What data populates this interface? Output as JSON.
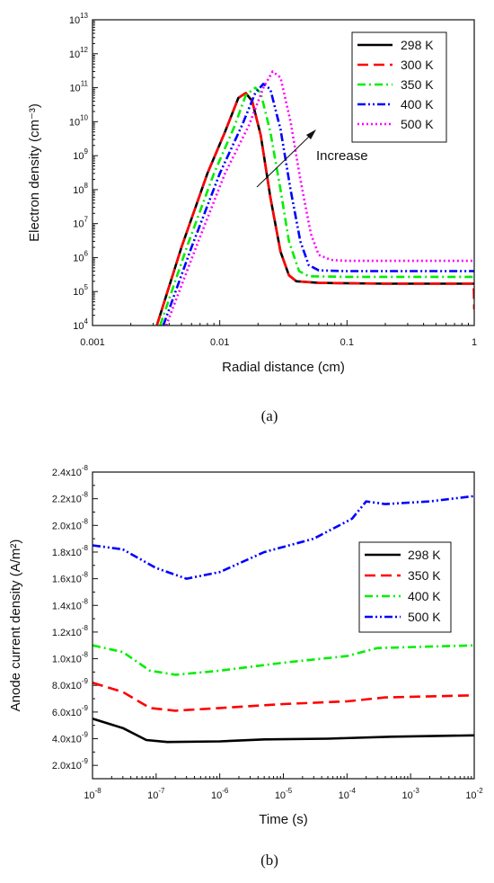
{
  "chart_data": [
    {
      "type": "line",
      "caption": "(a)",
      "xlabel": "Radial distance (cm)",
      "ylabel": "Electron density (cm⁻³)",
      "x_scale": "log",
      "y_scale": "log",
      "xlim": [
        0.001,
        1
      ],
      "ylim": [
        10000,
        10000000000000
      ],
      "x_ticks": [
        0.001,
        0.01,
        0.1,
        1
      ],
      "x_tick_labels": [
        "0.001",
        "0.01",
        "0.1",
        "1"
      ],
      "y_tick_exponents": [
        4,
        5,
        6,
        7,
        8,
        9,
        10,
        11,
        12,
        13
      ],
      "y_tick_base": "10",
      "legend_position": "top-right",
      "annotation": "Increase",
      "series": [
        {
          "name": "298 K",
          "color": "#000000",
          "dash": "solid",
          "points": [
            [
              0.0032,
              10000
            ],
            [
              0.005,
              2000000
            ],
            [
              0.008,
              300000000
            ],
            [
              0.011,
              5000000000
            ],
            [
              0.014,
              50000000000
            ],
            [
              0.016,
              70000000000
            ],
            [
              0.018,
              40000000000
            ],
            [
              0.021,
              4000000000
            ],
            [
              0.025,
              60000000
            ],
            [
              0.03,
              1500000
            ],
            [
              0.035,
              300000
            ],
            [
              0.04,
              200000
            ],
            [
              0.06,
              180000
            ],
            [
              0.2,
              170000
            ],
            [
              1,
              170000
            ]
          ]
        },
        {
          "name": "300 K",
          "color": "#ff0000",
          "dash": "dashed",
          "points": [
            [
              0.0032,
              10000
            ],
            [
              0.005,
              2000000
            ],
            [
              0.008,
              300000000
            ],
            [
              0.011,
              5000000000
            ],
            [
              0.014,
              50000000000
            ],
            [
              0.016,
              70000000000
            ],
            [
              0.018,
              40000000000
            ],
            [
              0.021,
              4000000000
            ],
            [
              0.025,
              60000000
            ],
            [
              0.03,
              1500000
            ],
            [
              0.035,
              300000
            ],
            [
              0.04,
              200000
            ],
            [
              0.06,
              180000
            ],
            [
              0.2,
              170000
            ],
            [
              0.99,
              170000
            ],
            [
              1,
              30000
            ]
          ]
        },
        {
          "name": "350 K",
          "color": "#00ee00",
          "dash": "dashdot",
          "points": [
            [
              0.0034,
              10000
            ],
            [
              0.0055,
              2000000
            ],
            [
              0.009,
              300000000
            ],
            [
              0.013,
              7000000000
            ],
            [
              0.016,
              60000000000
            ],
            [
              0.019,
              100000000000
            ],
            [
              0.021,
              70000000000
            ],
            [
              0.025,
              5000000000
            ],
            [
              0.03,
              100000000
            ],
            [
              0.035,
              3000000
            ],
            [
              0.042,
              400000
            ],
            [
              0.05,
              280000
            ],
            [
              0.1,
              270000
            ],
            [
              1,
              270000
            ]
          ]
        },
        {
          "name": "400 K",
          "color": "#0000ff",
          "dash": "dashdotdot",
          "points": [
            [
              0.0036,
              10000
            ],
            [
              0.006,
              2000000
            ],
            [
              0.01,
              300000000
            ],
            [
              0.015,
              8000000000
            ],
            [
              0.019,
              70000000000
            ],
            [
              0.022,
              130000000000
            ],
            [
              0.025,
              90000000000
            ],
            [
              0.03,
              6000000000
            ],
            [
              0.036,
              100000000
            ],
            [
              0.043,
              3000000
            ],
            [
              0.05,
              600000
            ],
            [
              0.06,
              420000
            ],
            [
              0.1,
              400000
            ],
            [
              1,
              400000
            ]
          ]
        },
        {
          "name": "500 K",
          "color": "#ff00ff",
          "dash": "dotted",
          "points": [
            [
              0.0038,
              10000
            ],
            [
              0.0065,
              2000000
            ],
            [
              0.011,
              300000000
            ],
            [
              0.017,
              8000000000
            ],
            [
              0.022,
              100000000000
            ],
            [
              0.026,
              300000000000
            ],
            [
              0.03,
              200000000000
            ],
            [
              0.036,
              10000000000
            ],
            [
              0.043,
              200000000
            ],
            [
              0.052,
              5000000
            ],
            [
              0.06,
              1200000
            ],
            [
              0.075,
              850000
            ],
            [
              0.1,
              800000
            ],
            [
              1,
              800000
            ]
          ]
        }
      ]
    },
    {
      "type": "line",
      "caption": "(b)",
      "xlabel": "Time (s)",
      "ylabel": "Anode current density (A/m²)",
      "x_scale": "log",
      "y_scale": "linear",
      "xlim": [
        1e-08,
        0.01
      ],
      "ylim": [
        1e-09,
        2.4e-08
      ],
      "x_tick_exponents": [
        -8,
        -7,
        -6,
        -5,
        -4,
        -3,
        -2
      ],
      "x_tick_base": "10",
      "y_ticks": [
        2e-09,
        4e-09,
        6e-09,
        8e-09,
        1e-08,
        1.2e-08,
        1.4e-08,
        1.6e-08,
        1.8e-08,
        2e-08,
        2.2e-08,
        2.4e-08
      ],
      "y_tick_labels": [
        {
          "mant": "2.0x10",
          "exp": "-9"
        },
        {
          "mant": "4.0x10",
          "exp": "-9"
        },
        {
          "mant": "6.0x10",
          "exp": "-9"
        },
        {
          "mant": "8.0x10",
          "exp": "-9"
        },
        {
          "mant": "1.0x10",
          "exp": "-8"
        },
        {
          "mant": "1.2x10",
          "exp": "-8"
        },
        {
          "mant": "1.4x10",
          "exp": "-8"
        },
        {
          "mant": "1.6x10",
          "exp": "-8"
        },
        {
          "mant": "1.8x10",
          "exp": "-8"
        },
        {
          "mant": "2.0x10",
          "exp": "-8"
        },
        {
          "mant": "2.2x10",
          "exp": "-8"
        },
        {
          "mant": "2.4x10",
          "exp": "-8"
        }
      ],
      "legend_position": "right",
      "series": [
        {
          "name": "298 K",
          "color": "#000000",
          "dash": "solid",
          "points": [
            [
              1e-08,
              5.5e-09
            ],
            [
              3e-08,
              4.8e-09
            ],
            [
              7e-08,
              3.9e-09
            ],
            [
              1.5e-07,
              3.75e-09
            ],
            [
              1e-06,
              3.8e-09
            ],
            [
              5e-06,
              3.95e-09
            ],
            [
              5e-05,
              4e-09
            ],
            [
              0.0005,
              4.15e-09
            ],
            [
              0.01,
              4.25e-09
            ]
          ]
        },
        {
          "name": "350 K",
          "color": "#ff0000",
          "dash": "dashed",
          "points": [
            [
              1e-08,
              8.2e-09
            ],
            [
              3e-08,
              7.5e-09
            ],
            [
              8e-08,
              6.3e-09
            ],
            [
              2e-07,
              6.1e-09
            ],
            [
              1e-06,
              6.3e-09
            ],
            [
              1e-05,
              6.6e-09
            ],
            [
              0.0001,
              6.8e-09
            ],
            [
              0.0004,
              7.1e-09
            ],
            [
              0.01,
              7.25e-09
            ]
          ]
        },
        {
          "name": "400 K",
          "color": "#00ee00",
          "dash": "dashdot",
          "points": [
            [
              1e-08,
              1.1e-08
            ],
            [
              3e-08,
              1.05e-08
            ],
            [
              8e-08,
              9.1e-09
            ],
            [
              2e-07,
              8.8e-09
            ],
            [
              1e-06,
              9.1e-09
            ],
            [
              1e-05,
              9.7e-09
            ],
            [
              0.0001,
              1.02e-08
            ],
            [
              0.0003,
              1.08e-08
            ],
            [
              0.01,
              1.1e-08
            ]
          ]
        },
        {
          "name": "500 K",
          "color": "#0000ff",
          "dash": "dashdotdot",
          "points": [
            [
              1e-08,
              1.85e-08
            ],
            [
              3e-08,
              1.82e-08
            ],
            [
              1e-07,
              1.68e-08
            ],
            [
              3e-07,
              1.6e-08
            ],
            [
              1e-06,
              1.65e-08
            ],
            [
              5e-06,
              1.8e-08
            ],
            [
              3e-05,
              1.9e-08
            ],
            [
              0.00012,
              2.05e-08
            ],
            [
              0.0002,
              2.18e-08
            ],
            [
              0.0004,
              2.16e-08
            ],
            [
              0.002,
              2.18e-08
            ],
            [
              0.01,
              2.22e-08
            ]
          ]
        }
      ]
    }
  ]
}
